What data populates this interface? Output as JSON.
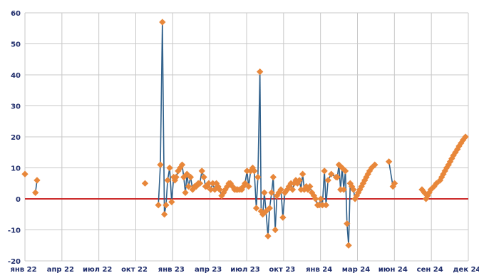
{
  "chart_data": {
    "type": "line",
    "title": "",
    "xlabel": "",
    "ylabel": "",
    "ylim": [
      -20,
      60
    ],
    "yticks": [
      60,
      50,
      40,
      30,
      20,
      10,
      0,
      -10,
      -20
    ],
    "xtick_labels": [
      "янв 22",
      "апр 22",
      "июл 22",
      "окт 22",
      "янв 23",
      "апр 23",
      "июл 23",
      "окт 23",
      "янв 24",
      "мар 24",
      "июн 24",
      "сен 24",
      "дек 24"
    ],
    "grid": true,
    "legend": "none",
    "colors": {
      "line": "#2e5f8a",
      "marker": "#e8873a",
      "zero_line": "#cc2a2a",
      "grid": "#c8c8c8",
      "tick_text": "#1f2d6b"
    },
    "series": [
      {
        "x": [
          0,
          2.6,
          3.0,
          29.8,
          33.1,
          33.6,
          34.1,
          34.6,
          35.0,
          35.4,
          35.9,
          36.4,
          36.9,
          37.2,
          37.5,
          38.0,
          38.5,
          39.0,
          39.4,
          39.8,
          40.2,
          40.6,
          41.1,
          41.6,
          42.1,
          42.5,
          43.0,
          43.4,
          43.9,
          44.4,
          44.8,
          45.2,
          45.6,
          46.1,
          46.6,
          47.1,
          47.5,
          47.9,
          48.3,
          48.8,
          49.3,
          49.7,
          50.2,
          50.6,
          51.0,
          51.5,
          52.0,
          52.4,
          52.8,
          53.3,
          53.8,
          54.2,
          54.6,
          55.1,
          55.5,
          56.0,
          56.5,
          56.9,
          57.4,
          57.8,
          58.3,
          58.6,
          59.0,
          59.4,
          59.8,
          60.3,
          60.7,
          61.2,
          61.6,
          62.1,
          62.5,
          63.0,
          63.5,
          64.0,
          64.5,
          65.1,
          65.5,
          66.0,
          66.4,
          66.8,
          67.2,
          67.6,
          68.1,
          68.5,
          68.9,
          69.3,
          69.8,
          70.2,
          70.7,
          71.2,
          71.7,
          72.1,
          72.6,
          73.0,
          73.4,
          73.8,
          74.3,
          74.7,
          75.2,
          76.0,
          77.2,
          77.5,
          77.9,
          78.3,
          78.7,
          79.1,
          79.5,
          79.9,
          80.3,
          80.7,
          81.1,
          81.5,
          81.9,
          82.3,
          82.7,
          83.1,
          83.5,
          83.9,
          84.3,
          84.7,
          85.1,
          85.5,
          86.0,
          86.8,
          90.3,
          91.3,
          91.7,
          98.5,
          99.1,
          99.5,
          99.9,
          100.3,
          100.7,
          101.5,
          102.1,
          103.0,
          103.4,
          103.8,
          104.2,
          104.6,
          105.1,
          105.5,
          105.9,
          106.3,
          106.8,
          107.3,
          107.7,
          108.2,
          108.7,
          109.3
        ],
        "y": [
          8,
          2,
          6,
          5,
          -2,
          11,
          57,
          -5,
          -2,
          6,
          10,
          -1,
          7,
          6,
          7,
          9,
          10,
          11,
          7,
          2,
          8,
          4,
          7,
          3,
          4,
          4,
          5,
          5,
          9,
          7,
          4,
          4,
          5,
          3,
          5,
          3,
          5,
          4,
          3,
          1,
          2,
          3,
          4,
          5,
          5,
          4,
          3,
          3,
          3,
          3,
          3,
          4,
          5,
          9,
          4,
          9,
          10,
          9,
          -3,
          7,
          41,
          -4,
          -5,
          2,
          -4,
          -12,
          -3,
          2,
          7,
          -10,
          1,
          2,
          3,
          -6,
          2,
          3,
          4,
          5,
          3,
          5,
          6,
          5,
          6,
          3,
          8,
          3,
          4,
          3,
          4,
          2,
          1,
          0,
          -2,
          -2,
          0,
          -2,
          9,
          -2,
          6,
          8,
          7,
          7,
          11,
          3,
          10,
          3,
          9,
          -8,
          -15,
          5,
          4,
          3,
          0,
          1,
          2,
          3,
          4,
          5,
          6,
          7,
          8,
          9,
          10,
          11,
          12,
          4,
          5,
          3,
          2,
          0,
          1,
          2,
          3,
          4,
          5,
          6,
          7,
          8,
          9,
          10,
          11,
          12,
          13,
          14,
          15,
          16,
          17,
          18,
          19,
          20
        ]
      }
    ]
  }
}
